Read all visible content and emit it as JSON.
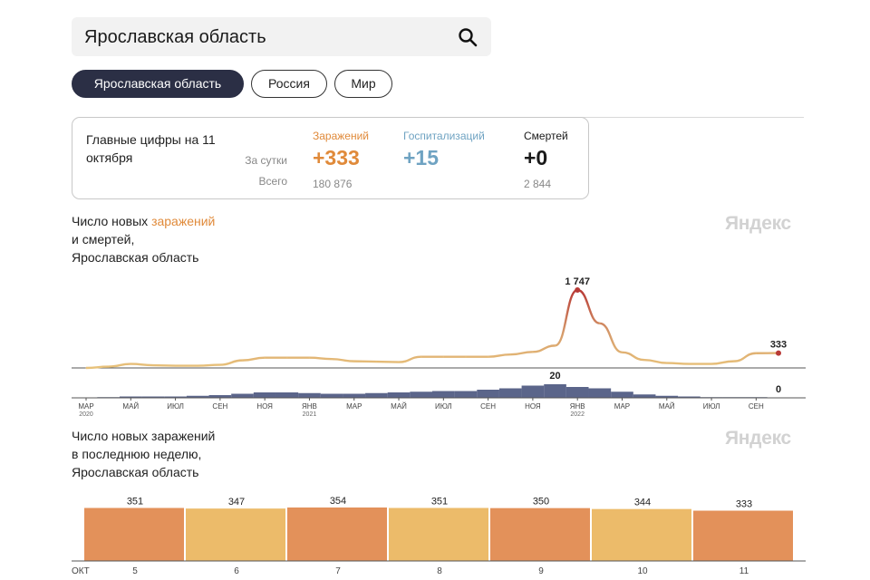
{
  "search": {
    "value": "Ярославская область",
    "icon": "search-icon"
  },
  "region_tabs": [
    {
      "label": "Ярославская область",
      "active": true
    },
    {
      "label": "Россия",
      "active": false
    },
    {
      "label": "Мир",
      "active": false
    }
  ],
  "stats": {
    "title": "Главные цифры на 11 октября",
    "row_day": "За сутки",
    "row_total": "Всего",
    "infections": {
      "label": "Заражений",
      "day": "+333",
      "total": "180 876",
      "color": "#e08a3a"
    },
    "hospitalizations": {
      "label": "Госпитализаций",
      "day": "+15",
      "total": "",
      "color": "#6fa3c2"
    },
    "deaths": {
      "label": "Смертей",
      "day": "+0",
      "total": "2 844",
      "color": "#1a1a1a"
    }
  },
  "chart1": {
    "title_before": "Число новых ",
    "title_highlight": "заражений",
    "title_line2": "и смертей,",
    "title_line3": "Ярославская область",
    "watermark": "Яндекс"
  },
  "chart2": {
    "title_line1": "Число новых заражений",
    "title_line2": "в последнюю неделю,",
    "title_line3": "Ярославская область",
    "watermark": "Яндекс"
  },
  "colors": {
    "infection_line": "#e8c27a",
    "infection_peak": "#b83a36",
    "deaths_bars": "#3e4a75",
    "bar_dark": "#e3915a",
    "bar_light": "#ecbb6a",
    "axis": "#555555"
  },
  "chart_data": [
    {
      "type": "line",
      "title": "Число новых заражений и смертей, Ярославская область",
      "series": [
        {
          "name": "Заражений",
          "months": [
            "2020-03",
            "2020-04",
            "2020-05",
            "2020-06",
            "2020-07",
            "2020-08",
            "2020-09",
            "2020-10",
            "2020-11",
            "2020-12",
            "2021-01",
            "2021-02",
            "2021-03",
            "2021-04",
            "2021-05",
            "2021-06",
            "2021-07",
            "2021-08",
            "2021-09",
            "2021-10",
            "2021-11",
            "2021-12",
            "2022-01",
            "2022-02",
            "2022-03",
            "2022-04",
            "2022-05",
            "2022-06",
            "2022-07",
            "2022-08",
            "2022-09",
            "2022-10"
          ],
          "values": [
            0,
            30,
            90,
            60,
            50,
            50,
            70,
            170,
            230,
            230,
            230,
            200,
            150,
            140,
            130,
            250,
            250,
            250,
            250,
            300,
            360,
            500,
            1747,
            1000,
            350,
            180,
            110,
            90,
            90,
            150,
            330,
            333
          ]
        },
        {
          "name": "Смертей",
          "months": [
            "2020-03",
            "2020-04",
            "2020-05",
            "2020-06",
            "2020-07",
            "2020-08",
            "2020-09",
            "2020-10",
            "2020-11",
            "2020-12",
            "2021-01",
            "2021-02",
            "2021-03",
            "2021-04",
            "2021-05",
            "2021-06",
            "2021-07",
            "2021-08",
            "2021-09",
            "2021-10",
            "2021-11",
            "2021-12",
            "2022-01",
            "2022-02",
            "2022-03",
            "2022-04",
            "2022-05",
            "2022-06",
            "2022-07",
            "2022-08",
            "2022-09",
            "2022-10"
          ],
          "values": [
            0,
            1,
            2,
            2,
            2,
            3,
            4,
            6,
            8,
            8,
            7,
            6,
            6,
            7,
            8,
            9,
            10,
            10,
            12,
            14,
            18,
            20,
            16,
            14,
            9,
            5,
            3,
            2,
            1,
            1,
            1,
            0
          ]
        }
      ],
      "annotations": [
        {
          "series": "Заражений",
          "month": "2022-01",
          "label": "1 747"
        },
        {
          "series": "Заражений",
          "month": "2022-10",
          "label": "333"
        },
        {
          "series": "Смертей",
          "month": "2021-12",
          "label": "20"
        },
        {
          "series": "Смертей",
          "month": "2022-10",
          "label": "0"
        }
      ],
      "x_ticks": [
        {
          "label": "МАР",
          "year": "2020",
          "month": "2020-03"
        },
        {
          "label": "МАЙ",
          "month": "2020-05"
        },
        {
          "label": "ИЮЛ",
          "month": "2020-07"
        },
        {
          "label": "СЕН",
          "month": "2020-09"
        },
        {
          "label": "НОЯ",
          "month": "2020-11"
        },
        {
          "label": "ЯНВ",
          "year": "2021",
          "month": "2021-01"
        },
        {
          "label": "МАР",
          "month": "2021-03"
        },
        {
          "label": "МАЙ",
          "month": "2021-05"
        },
        {
          "label": "ИЮЛ",
          "month": "2021-07"
        },
        {
          "label": "СЕН",
          "month": "2021-09"
        },
        {
          "label": "НОЯ",
          "month": "2021-11"
        },
        {
          "label": "ЯНВ",
          "year": "2022",
          "month": "2022-01"
        },
        {
          "label": "МАР",
          "month": "2022-03"
        },
        {
          "label": "МАЙ",
          "month": "2022-05"
        },
        {
          "label": "ИЮЛ",
          "month": "2022-07"
        },
        {
          "label": "СЕН",
          "month": "2022-09"
        }
      ]
    },
    {
      "type": "bar",
      "title": "Число новых заражений в последнюю неделю, Ярославская область",
      "x_prefix": "ОКТ",
      "categories": [
        "5",
        "6",
        "7",
        "8",
        "9",
        "10",
        "11"
      ],
      "values": [
        351,
        347,
        354,
        351,
        350,
        344,
        333
      ],
      "value_labels": [
        "351",
        "347",
        "354",
        "351",
        "350",
        "344",
        "333"
      ]
    }
  ]
}
